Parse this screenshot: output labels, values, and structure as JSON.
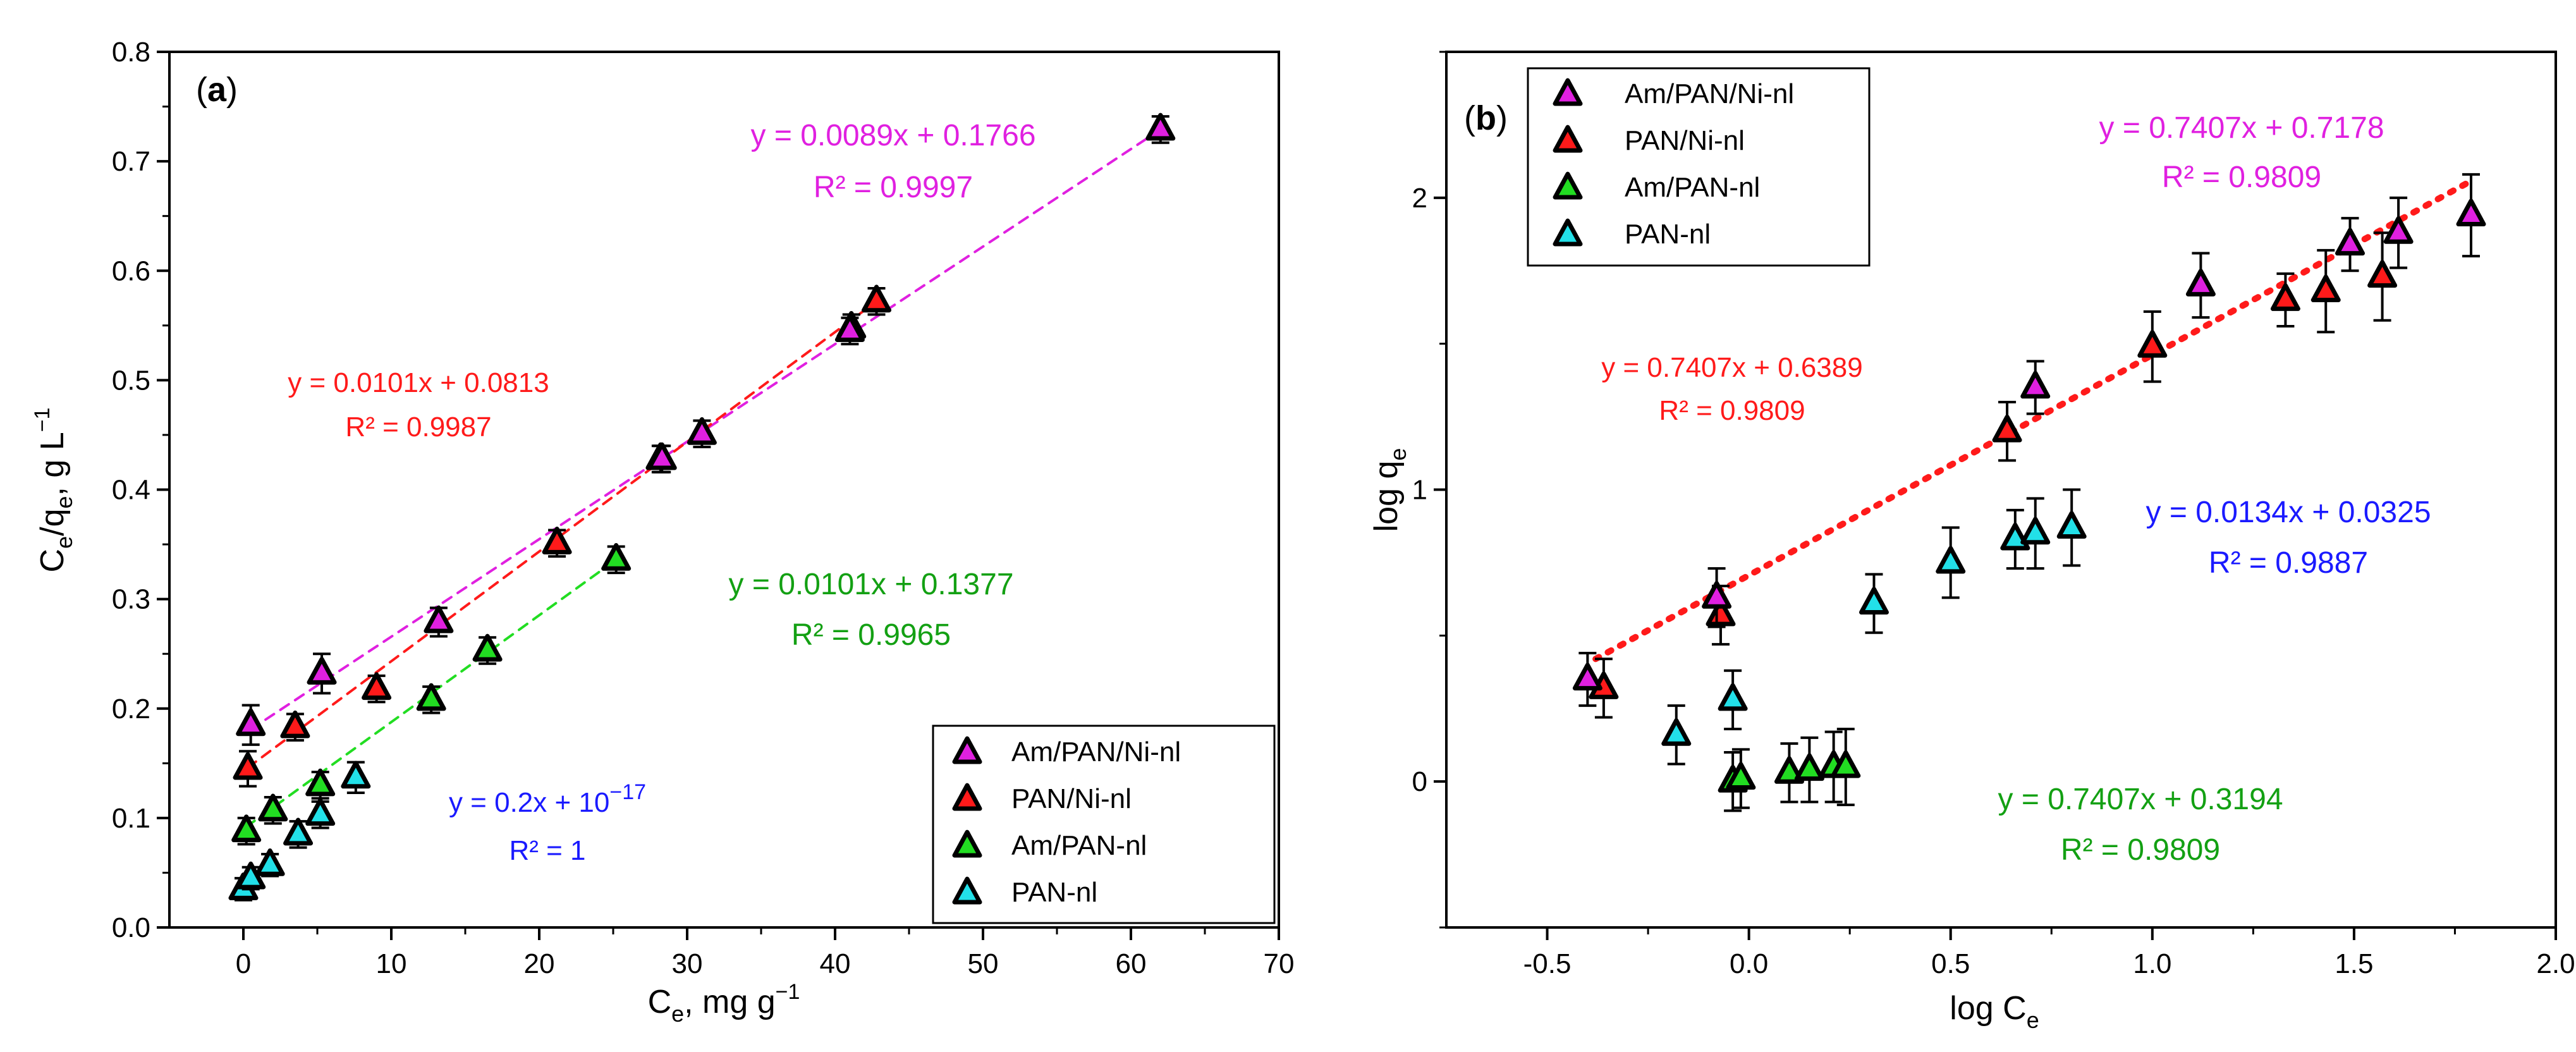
{
  "chart_data": [
    {
      "type": "scatter",
      "panel_label": "a",
      "xlabel": {
        "main": "C",
        "sub": "e",
        "rest": ", mg g",
        "sup": "−1"
      },
      "ylabel": {
        "main": "C",
        "sub1": "e",
        "mid": "/q",
        "sub2": "e",
        "rest": ", g L",
        "sup": "−1"
      },
      "xlim": [
        -5,
        70
      ],
      "ylim": [
        0,
        0.8
      ],
      "xticks": [
        "0",
        "10",
        "20",
        "30",
        "40",
        "50",
        "60",
        "70"
      ],
      "yticks": [
        "0.0",
        "0.1",
        "0.2",
        "0.3",
        "0.4",
        "0.5",
        "0.6",
        "0.7",
        "0.8"
      ],
      "legend_position": "bottom-right",
      "series": [
        {
          "name": "Am/PAN/Ni-nl",
          "color": "#e020e0",
          "x": [
            0.5,
            5.3,
            13.2,
            28.3,
            31.0,
            41.0,
            62.0
          ],
          "y": [
            0.185,
            0.232,
            0.279,
            0.428,
            0.451,
            0.545,
            0.729
          ],
          "err": [
            0.018,
            0.018,
            0.013,
            0.012,
            0.012,
            0.012,
            0.012
          ]
        },
        {
          "name": "PAN/Ni-nl",
          "color": "#ff1a1a",
          "x": [
            0.3,
            3.5,
            9.0,
            21.2,
            28.2,
            41.1,
            42.8
          ],
          "y": [
            0.145,
            0.183,
            0.218,
            0.351,
            0.428,
            0.548,
            0.572
          ],
          "err": [
            0.016,
            0.012,
            0.012,
            0.012,
            0.012,
            0.012,
            0.012
          ]
        },
        {
          "name": "Am/PAN-nl",
          "color": "#22dd22",
          "x": [
            0.2,
            2.0,
            5.2,
            12.7,
            16.5,
            25.2
          ],
          "y": [
            0.088,
            0.107,
            0.13,
            0.208,
            0.253,
            0.336
          ],
          "err": [
            0.012,
            0.012,
            0.012,
            0.012,
            0.012,
            0.012
          ]
        },
        {
          "name": "PAN-nl",
          "color": "#22e0e8",
          "x": [
            0.0,
            0.5,
            1.8,
            3.7,
            5.2,
            7.6
          ],
          "y": [
            0.035,
            0.045,
            0.057,
            0.085,
            0.103,
            0.137
          ],
          "err": [
            0.01,
            0.01,
            0.01,
            0.012,
            0.012,
            0.014
          ]
        }
      ],
      "fit_lines": [
        {
          "color": "#e020e0",
          "x": [
            0.5,
            62.0
          ],
          "y": [
            0.181,
            0.729
          ]
        },
        {
          "color": "#ff1a1a",
          "x": [
            0.3,
            42.8
          ],
          "y": [
            0.146,
            0.572
          ]
        },
        {
          "color": "#22dd22",
          "x": [
            0.2,
            25.2
          ],
          "y": [
            0.092,
            0.336
          ]
        }
      ],
      "annotations": [
        {
          "eq": "y = 0.0089x + 0.1766",
          "r2": "R² = 0.9997",
          "color": "#e020e0"
        },
        {
          "eq": "y = 0.0101x + 0.0813",
          "r2": "R² = 0.9987",
          "color": "#ff1a1a"
        },
        {
          "eq": "y = 0.0101x + 0.1377",
          "r2": "R² = 0.9965",
          "color": "#13a013"
        },
        {
          "eq_main": "y = 0.2x + 10",
          "eq_sup": "−17",
          "r2": "R² = 1",
          "color": "#1a1aff"
        }
      ]
    },
    {
      "type": "scatter",
      "panel_label": "b",
      "xlabel": {
        "main": "log C",
        "sub": "e"
      },
      "ylabel": {
        "main": "log q",
        "sub": "e"
      },
      "xlim": [
        -0.75,
        2.0
      ],
      "ylim": [
        -0.5,
        2.5
      ],
      "xticks": [
        "-0.5",
        "0.0",
        "0.5",
        "1.0",
        "1.5",
        "2.0"
      ],
      "yticks": [
        "0",
        "1",
        "2"
      ],
      "legend_position": "top-left",
      "series": [
        {
          "name": "Am/PAN/Ni-nl",
          "color": "#e020e0",
          "x": [
            -0.4,
            -0.08,
            0.71,
            1.12,
            1.49,
            1.61,
            1.79
          ],
          "y": [
            0.35,
            0.63,
            1.35,
            1.7,
            1.84,
            1.88,
            1.94
          ],
          "err": [
            0.09,
            0.1,
            0.09,
            0.11,
            0.09,
            0.12,
            0.14
          ]
        },
        {
          "name": "PAN/Ni-nl",
          "color": "#ff1a1a",
          "x": [
            -0.36,
            -0.07,
            0.64,
            1.0,
            1.33,
            1.43,
            1.57
          ],
          "y": [
            0.32,
            0.57,
            1.2,
            1.49,
            1.65,
            1.68,
            1.73
          ],
          "err": [
            0.1,
            0.1,
            0.1,
            0.12,
            0.09,
            0.14,
            0.15
          ]
        },
        {
          "name": "Am/PAN-nl",
          "color": "#22dd22",
          "x": [
            -0.04,
            -0.02,
            0.1,
            0.15,
            0.21,
            0.24
          ],
          "y": [
            0.0,
            0.01,
            0.03,
            0.04,
            0.05,
            0.05
          ],
          "err": [
            0.1,
            0.1,
            0.1,
            0.11,
            0.12,
            0.13
          ]
        },
        {
          "name": "PAN-nl",
          "color": "#22e0e8",
          "x": [
            -0.18,
            -0.04,
            0.31,
            0.5,
            0.66,
            0.71,
            0.8
          ],
          "y": [
            0.16,
            0.28,
            0.61,
            0.75,
            0.83,
            0.85,
            0.87
          ],
          "err": [
            0.1,
            0.1,
            0.1,
            0.12,
            0.1,
            0.12,
            0.13
          ]
        }
      ],
      "fit_lines": [
        {
          "color": "#ff1a1a",
          "x": [
            -0.38,
            1.78
          ],
          "y": [
            0.42,
            2.05
          ]
        }
      ],
      "annotations": [
        {
          "eq": "y = 0.7407x + 0.7178",
          "r2": "R² = 0.9809",
          "color": "#e020e0"
        },
        {
          "eq": "y = 0.7407x + 0.6389",
          "r2": "R² = 0.9809",
          "color": "#ff1a1a"
        },
        {
          "eq": "y = 0.0134x + 0.0325",
          "r2": "R² = 0.9887",
          "color": "#1a1aff"
        },
        {
          "eq": "y = 0.7407x + 0.3194",
          "r2": "R² = 0.9809",
          "color": "#13a013"
        }
      ]
    }
  ]
}
